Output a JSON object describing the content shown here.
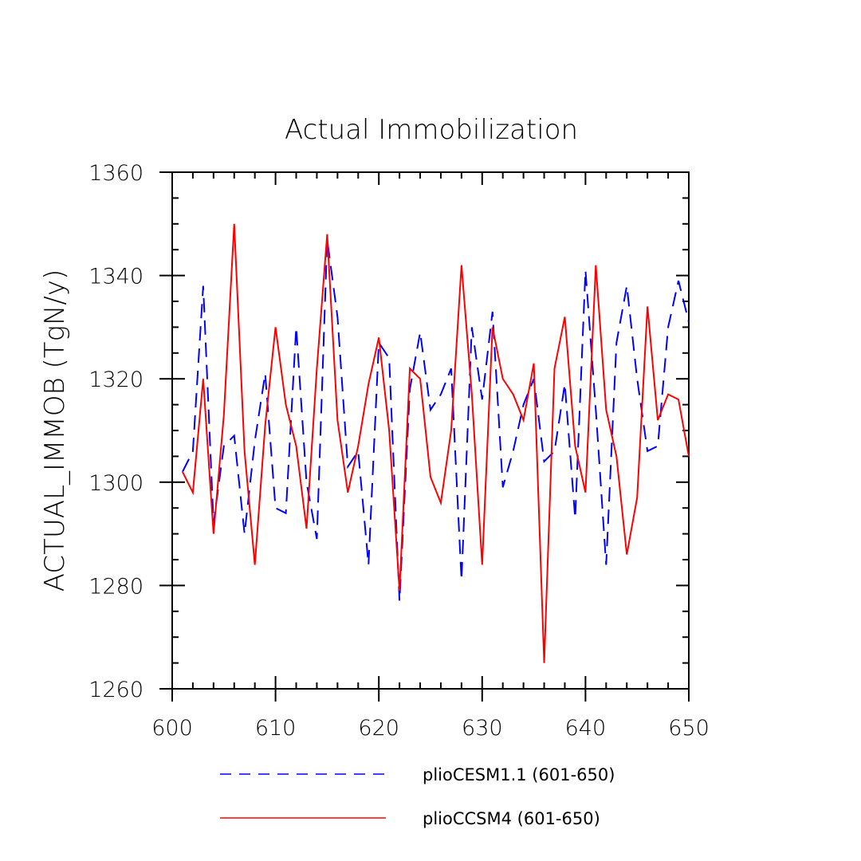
{
  "chart_data": {
    "type": "line",
    "title": "Actual Immobilization",
    "xlabel": "",
    "ylabel": "ACTUAL_IMMOB  (TgN/y)",
    "xlim": [
      600,
      650
    ],
    "ylim": [
      1260,
      1360
    ],
    "x_ticks": [
      600,
      610,
      620,
      630,
      640,
      650
    ],
    "y_ticks": [
      1260,
      1280,
      1300,
      1320,
      1340,
      1360
    ],
    "grid": false,
    "legend_position": "bottom",
    "x": [
      601,
      602,
      603,
      604,
      605,
      606,
      607,
      608,
      609,
      610,
      611,
      612,
      613,
      614,
      615,
      616,
      617,
      618,
      619,
      620,
      621,
      622,
      623,
      624,
      625,
      626,
      627,
      628,
      629,
      630,
      631,
      632,
      633,
      634,
      635,
      636,
      637,
      638,
      639,
      640,
      641,
      642,
      643,
      644,
      645,
      646,
      647,
      648,
      649,
      650
    ],
    "series": [
      {
        "name": "plioCESM1.1 (601-650)",
        "color": "#0000ff",
        "dash": "dashed",
        "values": [
          1302,
          1306,
          1338,
          1292,
          1307,
          1309,
          1290,
          1308,
          1321,
          1295,
          1294,
          1330,
          1300,
          1289,
          1347,
          1332,
          1303,
          1306,
          1284,
          1327,
          1324,
          1277,
          1318,
          1329,
          1314,
          1317,
          1322,
          1281,
          1330,
          1316,
          1333,
          1299,
          1306,
          1315,
          1320,
          1304,
          1306,
          1319,
          1293,
          1341,
          1314,
          1284,
          1327,
          1338,
          1320,
          1306,
          1307,
          1330,
          1339,
          1331
        ]
      },
      {
        "name": "plioCCSM4 (601-650)",
        "color": "#ff0000",
        "dash": "solid",
        "values": [
          1302,
          1298,
          1320,
          1290,
          1313,
          1350,
          1306,
          1284,
          1311,
          1330,
          1315,
          1307,
          1291,
          1322,
          1348,
          1312,
          1298,
          1307,
          1319,
          1328,
          1310,
          1279,
          1322,
          1320,
          1301,
          1296,
          1310,
          1342,
          1317,
          1284,
          1330,
          1320,
          1317,
          1312,
          1323,
          1265,
          1322,
          1332,
          1307,
          1298,
          1342,
          1314,
          1305,
          1286,
          1297,
          1334,
          1312,
          1317,
          1316,
          1305
        ]
      }
    ]
  }
}
